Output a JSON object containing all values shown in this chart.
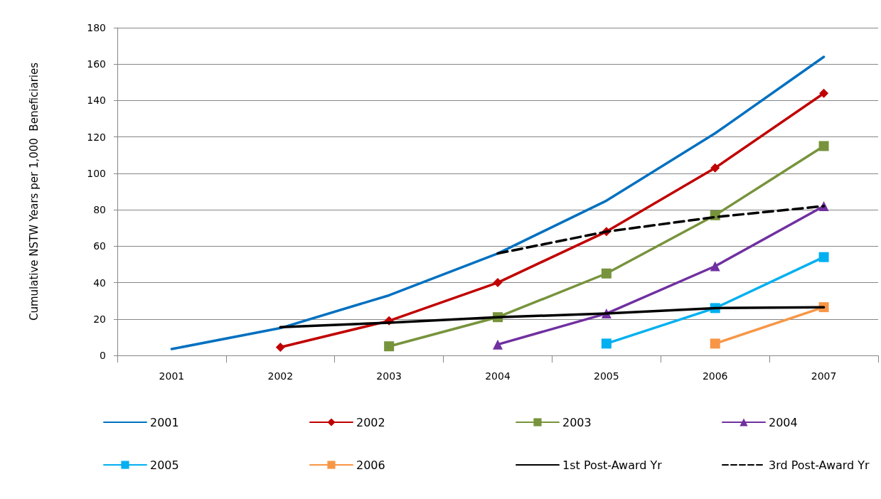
{
  "chart_data": {
    "type": "line",
    "ylabel": "Cumulative NSTW Years per 1,000  Beneficiaries",
    "categories": [
      "2001",
      "2002",
      "2003",
      "2004",
      "2005",
      "2006",
      "2007"
    ],
    "ylim": [
      0,
      180
    ],
    "yticks": [
      0,
      20,
      40,
      60,
      80,
      100,
      120,
      140,
      160,
      180
    ],
    "grid": "y",
    "legend": "bottom",
    "line_style": "solid",
    "series": [
      {
        "name": "2001",
        "color": "#0070c0",
        "marker": "none",
        "values": [
          3.5,
          15,
          33,
          56,
          85,
          122,
          164
        ]
      },
      {
        "name": "2002",
        "color": "#c00000",
        "marker": "diamond",
        "values": [
          null,
          4.5,
          19,
          40,
          68,
          103,
          144
        ]
      },
      {
        "name": "2003",
        "color": "#77933c",
        "marker": "square",
        "values": [
          null,
          null,
          5,
          21,
          45,
          77,
          115
        ]
      },
      {
        "name": "2004",
        "color": "#7030a0",
        "marker": "triangle",
        "values": [
          null,
          null,
          null,
          6,
          23,
          49,
          82
        ]
      },
      {
        "name": "2005",
        "color": "#00b0f0",
        "marker": "square",
        "values": [
          null,
          null,
          null,
          null,
          6.5,
          26,
          54
        ]
      },
      {
        "name": "2006",
        "color": "#f79646",
        "marker": "square",
        "values": [
          null,
          null,
          null,
          null,
          null,
          6.5,
          26.5
        ]
      },
      {
        "name": "1st Post-Award Yr",
        "color": "#000000",
        "marker": "none",
        "values": [
          null,
          15.5,
          18,
          21,
          23,
          26,
          26.5
        ]
      },
      {
        "name": "3rd Post-Award Yr",
        "color": "#000000",
        "marker": "none",
        "line_style": "dashed",
        "values": [
          null,
          null,
          null,
          56,
          68,
          76,
          82
        ]
      }
    ]
  }
}
